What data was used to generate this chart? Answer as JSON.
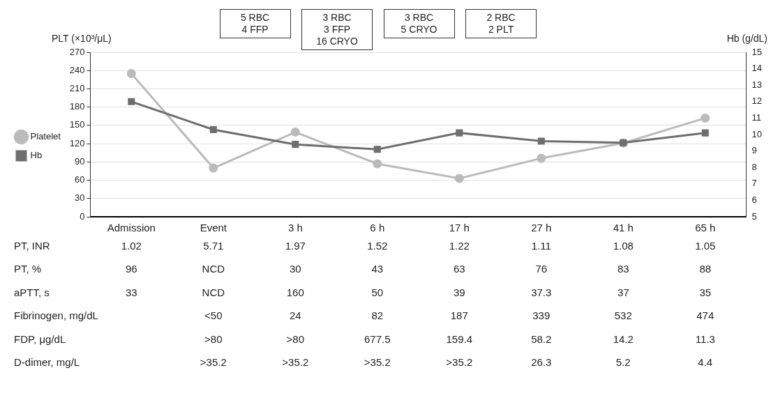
{
  "chart_data": {
    "type": "line",
    "ylabel": "PLT (×10³/μL)",
    "y2label": "Hb (g/dL)",
    "categories": [
      "Admission",
      "Event",
      "3 h",
      "6 h",
      "17 h",
      "27 h",
      "41 h",
      "65 h"
    ],
    "series": [
      {
        "name": "Platelet",
        "color": "#bbbbbb",
        "marker": "circle",
        "values": [
          235,
          80,
          139,
          87,
          63,
          96,
          121,
          162
        ]
      },
      {
        "name": "Hb",
        "color": "#6e6e6e",
        "marker": "square",
        "axis": "y2",
        "values": [
          12.0,
          10.3,
          9.4,
          9.1,
          10.1,
          9.6,
          9.5,
          10.1
        ]
      }
    ],
    "ylim": [
      0,
      270
    ],
    "yticks": [
      0,
      30,
      60,
      90,
      120,
      150,
      180,
      210,
      240,
      270
    ],
    "y2lim": [
      5,
      15
    ],
    "y2ticks": [
      5,
      6,
      7,
      8,
      9,
      10,
      11,
      12,
      13,
      14,
      15
    ],
    "grid": "y",
    "legend": "left",
    "annotations": [
      "5 RBC\n4 FFP",
      "3 RBC\n3 FFP\n16 CRYO",
      "3 RBC\n5 CRYO",
      "2 RBC\n2 PLT",
      "PT, INR",
      "1.02",
      "5.71",
      "1.97",
      "1.52",
      "1.22",
      "1.11",
      "1.08",
      "1.05",
      "PT, %",
      "96",
      "NCD",
      "30",
      "43",
      "63",
      "76",
      "83",
      "88",
      "aPTT, s",
      "33",
      "NCD",
      "160",
      "50",
      "39",
      "37.3",
      "37",
      "35",
      "Fibrinogen, mg/dL",
      null,
      "<50",
      "24",
      "82",
      "187",
      "339",
      "532",
      "474",
      "FDP, μg/dL",
      null,
      ">80",
      ">80",
      "677.5",
      "159.4",
      "58.2",
      "14.2",
      "11.3",
      "D-dimer, mg/L",
      null,
      ">35.2",
      ">35.2",
      ">35.2",
      ">35.2",
      "26.3",
      "5.2",
      "4.4"
    ]
  }
}
